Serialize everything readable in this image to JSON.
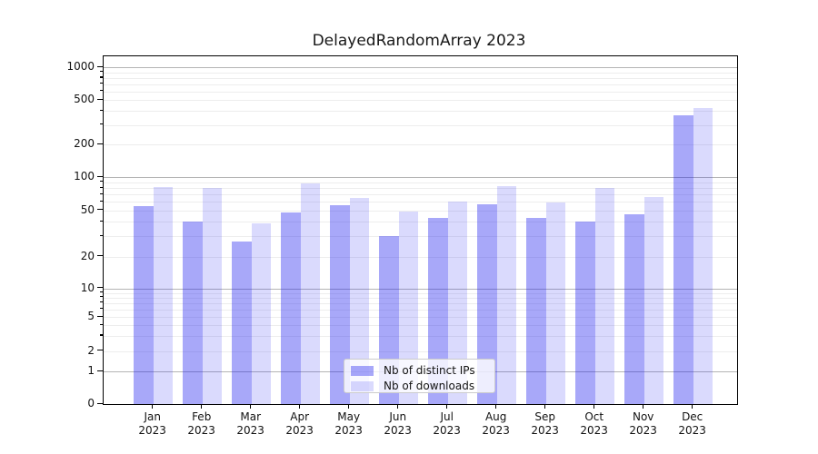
{
  "title": "DelayedRandomArray 2023",
  "chart_data": {
    "type": "bar",
    "title": "DelayedRandomArray 2023",
    "categories": [
      "Jan 2023",
      "Feb 2023",
      "Mar 2023",
      "Apr 2023",
      "May 2023",
      "Jun 2023",
      "Jul 2023",
      "Aug 2023",
      "Sep 2023",
      "Oct 2023",
      "Nov 2023",
      "Dec 2023"
    ],
    "x_tick_months": [
      "Jan",
      "Feb",
      "Mar",
      "Apr",
      "May",
      "Jun",
      "Jul",
      "Aug",
      "Sep",
      "Oct",
      "Nov",
      "Dec"
    ],
    "x_tick_year": "2023",
    "series": [
      {
        "name": "Nb of distinct IPs",
        "color": "rgba(25,25,240,0.38)",
        "values": [
          55,
          40,
          27,
          48,
          56,
          30,
          43,
          57,
          43,
          40,
          46,
          365
        ]
      },
      {
        "name": "Nb of downloads",
        "color": "rgba(25,25,240,0.16)",
        "values": [
          82,
          80,
          39,
          88,
          65,
          49,
          60,
          83,
          59,
          80,
          66,
          425
        ]
      }
    ],
    "yscale": "symlog",
    "y_ticks": [
      0,
      1,
      2,
      5,
      10,
      20,
      50,
      100,
      200,
      500,
      1000
    ],
    "ylim": [
      0,
      1250
    ],
    "grid": "both",
    "legend_position": "lower center",
    "xlabel": "",
    "ylabel": ""
  },
  "colors": {
    "major_grid": "#b4b4b4",
    "minor_grid": "#ededed",
    "spine": "#000000",
    "text": "#131313",
    "legend_border": "#cccccc",
    "legend_bg": "rgba(255,255,255,0.8)"
  }
}
